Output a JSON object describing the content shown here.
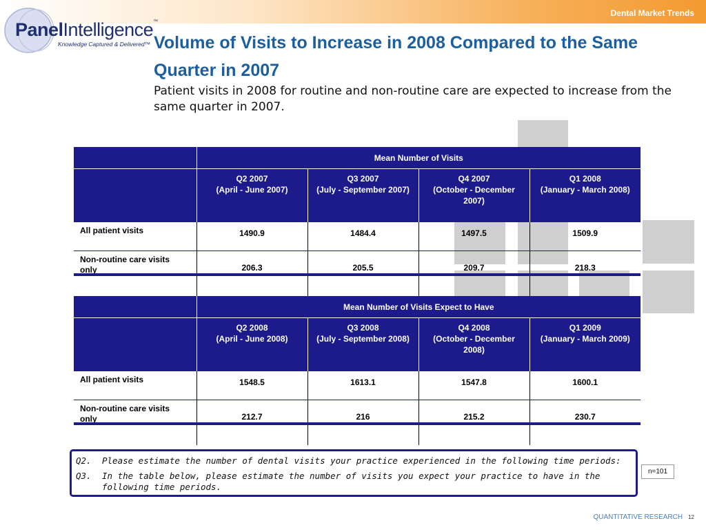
{
  "header": {
    "section_label": "Dental Market Trends"
  },
  "logo": {
    "brand_part1": "Panel",
    "brand_part2": "Intelligence",
    "trademark": "™",
    "tagline": "Knowledge Captured & Delivered™"
  },
  "title": "Volume of Visits to Increase in 2008 Compared to the Same Quarter in 2007",
  "subtitle": "Patient visits in 2008 for routine and non-routine care are expected to increase from the same quarter in 2007.",
  "table1": {
    "group_header": "Mean Number of Visits",
    "columns": [
      {
        "line1": "Q2 2007",
        "line2": "(April - June 2007)"
      },
      {
        "line1": "Q3 2007",
        "line2": "(July - September 2007)"
      },
      {
        "line1": "Q4 2007",
        "line2": "(October - December 2007)"
      },
      {
        "line1": "Q1 2008",
        "line2": "(January - March 2008)"
      }
    ],
    "rows": [
      {
        "label": "All patient visits",
        "values": [
          "1490.9",
          "1484.4",
          "1497.5",
          "1509.9"
        ]
      },
      {
        "label": "Non-routine care visits only",
        "values": [
          "206.3",
          "205.5",
          "209.7",
          "218.3"
        ]
      }
    ]
  },
  "table2": {
    "group_header": "Mean Number of Visits Expect to Have",
    "columns": [
      {
        "line1": "Q2 2008",
        "line2": "(April - June 2008)"
      },
      {
        "line1": "Q3 2008",
        "line2": "(July - September 2008)"
      },
      {
        "line1": "Q4 2008",
        "line2": "(October - December 2008)"
      },
      {
        "line1": "Q1 2009",
        "line2": "(January - March 2009)"
      }
    ],
    "rows": [
      {
        "label": "All patient visits",
        "values": [
          "1548.5",
          "1613.1",
          "1547.8",
          "1600.1"
        ]
      },
      {
        "label": "Non-routine care visits only",
        "values": [
          "212.7",
          "216",
          "215.2",
          "230.7"
        ]
      }
    ]
  },
  "questions": [
    {
      "num": "Q2.",
      "text": "Please estimate the number of dental visits your practice experienced in the following time periods:"
    },
    {
      "num": "Q3.",
      "text": "In the table below, please estimate the number of visits you expect your practice to have in the following time periods."
    }
  ],
  "sample_size": "n=101",
  "footer": {
    "label": "QUANTITATIVE RESEARCH",
    "page": "12"
  },
  "colors": {
    "table_header": "#1d1b8c",
    "title": "#1b5fa0",
    "accent_orange": "#f39a30",
    "decor_gray": "#cfcfcf"
  }
}
